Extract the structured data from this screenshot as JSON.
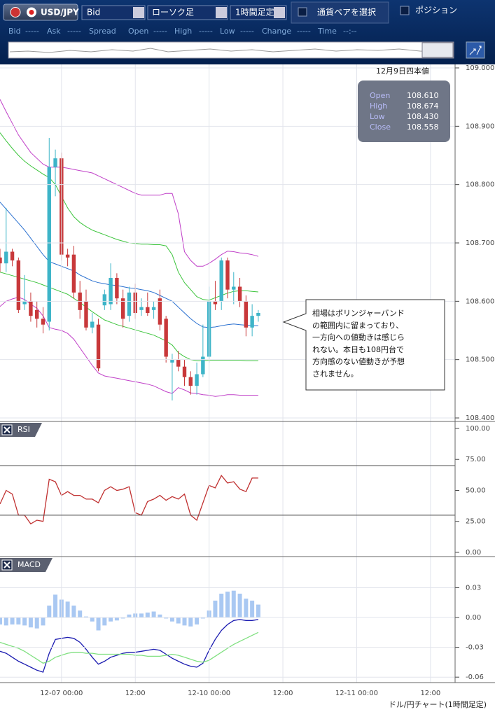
{
  "toolbar": {
    "pair": "USD/JPY",
    "price_side": "Bid",
    "chart_style": "ローソク足",
    "interval": "1時間足定",
    "select_pair": "通貨ペアを選択",
    "position": "ポジション"
  },
  "quote_bar": [
    "Bid",
    "-----",
    "Ask",
    "-----",
    "Spread",
    "Open",
    "-----",
    "High",
    "-----",
    "Low",
    "-----",
    "Change",
    "-----",
    "Time",
    "--:--"
  ],
  "info_box": {
    "title": "12月9日四本値",
    "rows": [
      {
        "label": "Open",
        "value": "108.610"
      },
      {
        "label": "High",
        "value": "108.674"
      },
      {
        "label": "Low",
        "value": "108.430"
      },
      {
        "label": "Close",
        "value": "108.558"
      }
    ]
  },
  "annotation": [
    "相場はボリンジャーバンド",
    "の範囲内に留まっており、",
    "一方向への値動きは感じら",
    "れない。本日も108円台で",
    "方向感のない値動きが予想",
    "されません。"
  ],
  "footer": "ドル/円チャート(1時間足定)",
  "chart_data": [
    {
      "type": "candlestick",
      "x": [
        0,
        1,
        2,
        3,
        4,
        5,
        6,
        7,
        8,
        9,
        10,
        11,
        12,
        13,
        14,
        15,
        16,
        17,
        18,
        19,
        20,
        21,
        22,
        23,
        24,
        25,
        26,
        27,
        28,
        29,
        30,
        31,
        32,
        33,
        34,
        35,
        36,
        37,
        38,
        39,
        40,
        41,
        42
      ],
      "xlim": [
        0,
        74
      ],
      "xticks": [
        {
          "value": 10,
          "label": "12-07 00:00"
        },
        {
          "value": 22,
          "label": "12:00"
        },
        {
          "value": 34,
          "label": "12-10 00:00"
        },
        {
          "value": 46,
          "label": "12:00"
        },
        {
          "value": 58,
          "label": "12-11 00:00"
        },
        {
          "value": 70,
          "label": "12:00"
        }
      ],
      "ylim": [
        108.394,
        109.006
      ],
      "yticks": [
        {
          "value": 108.4,
          "label": "108.400"
        },
        {
          "value": 108.5,
          "label": "108.500"
        },
        {
          "value": 108.6,
          "label": "108.600"
        },
        {
          "value": 108.7,
          "label": "108.700"
        },
        {
          "value": 108.8,
          "label": "108.800"
        },
        {
          "value": 108.9,
          "label": "108.900"
        },
        {
          "value": 109,
          "label": "109.000"
        }
      ],
      "grid": true,
      "up_color": "#3db4c8",
      "down_color": "#c8383a",
      "open": [
        108.675,
        108.665,
        108.685,
        108.67,
        108.595,
        108.6,
        108.585,
        108.57,
        108.565,
        108.83,
        108.845,
        108.68,
        108.68,
        108.615,
        108.6,
        108.555,
        108.56,
        108.593,
        108.595,
        108.64,
        108.605,
        108.575,
        108.615,
        108.585,
        108.59,
        108.585,
        108.605,
        108.57,
        108.495,
        108.5,
        108.488,
        108.47,
        108.455,
        108.475,
        108.505,
        108.6,
        108.6,
        108.67,
        108.62,
        108.625,
        108.6,
        108.555,
        108.575
      ],
      "high": [
        108.69,
        108.76,
        108.69,
        108.675,
        108.645,
        108.615,
        108.6,
        108.59,
        108.88,
        108.86,
        108.855,
        108.69,
        108.695,
        108.635,
        108.62,
        108.58,
        108.57,
        108.62,
        108.665,
        108.648,
        108.62,
        108.625,
        108.63,
        108.605,
        108.615,
        108.6,
        108.62,
        108.575,
        108.51,
        108.515,
        108.5,
        108.48,
        108.495,
        108.56,
        108.625,
        108.635,
        108.675,
        108.675,
        108.65,
        108.64,
        108.61,
        108.595,
        108.585
      ],
      "low": [
        108.65,
        108.65,
        108.66,
        108.58,
        108.585,
        108.565,
        108.555,
        108.545,
        108.55,
        108.78,
        108.67,
        108.66,
        108.605,
        108.57,
        108.55,
        108.545,
        108.48,
        108.585,
        108.585,
        108.595,
        108.555,
        108.565,
        108.57,
        108.575,
        108.575,
        108.57,
        108.55,
        108.495,
        108.43,
        108.48,
        108.455,
        108.44,
        108.44,
        108.47,
        108.495,
        108.585,
        108.585,
        108.605,
        108.595,
        108.59,
        108.54,
        108.54,
        108.565
      ],
      "close": [
        108.665,
        108.685,
        108.67,
        108.585,
        108.6,
        108.575,
        108.57,
        108.56,
        108.83,
        108.845,
        108.68,
        108.675,
        108.615,
        108.585,
        108.555,
        108.565,
        108.485,
        108.612,
        108.64,
        108.605,
        108.57,
        108.615,
        108.58,
        108.59,
        108.58,
        108.59,
        108.56,
        108.505,
        108.5,
        108.488,
        108.47,
        108.455,
        108.475,
        108.505,
        108.6,
        108.595,
        108.67,
        108.62,
        108.625,
        108.6,
        108.555,
        108.575,
        108.58
      ],
      "bands": [
        {
          "color": "#c040c8",
          "values": [
            108.946,
            108.925,
            108.905,
            108.885,
            108.87,
            108.855,
            108.845,
            108.835,
            108.83,
            108.83,
            108.83,
            108.828,
            108.826,
            108.824,
            108.822,
            108.82,
            108.815,
            108.81,
            108.805,
            108.8,
            108.795,
            108.79,
            108.785,
            108.782,
            108.782,
            108.782,
            108.782,
            108.785,
            108.785,
            108.75,
            108.685,
            108.67,
            108.66,
            108.66,
            108.665,
            108.672,
            108.68,
            108.686,
            108.685,
            108.683,
            108.682,
            108.68,
            108.677
          ]
        },
        {
          "color": "#3cc43c",
          "values": [
            108.889,
            108.875,
            108.862,
            108.85,
            108.84,
            108.832,
            108.825,
            108.818,
            108.812,
            108.8,
            108.78,
            108.76,
            108.745,
            108.735,
            108.728,
            108.722,
            108.718,
            108.714,
            108.71,
            108.706,
            108.703,
            108.7,
            108.699,
            108.698,
            108.698,
            108.697,
            108.697,
            108.695,
            108.68,
            108.65,
            108.632,
            108.62,
            108.608,
            108.603,
            108.602,
            108.606,
            108.61,
            108.614,
            108.617,
            108.618,
            108.618,
            108.617,
            108.616
          ]
        },
        {
          "color": "#2a70d0",
          "values": [
            108.77,
            108.758,
            108.746,
            108.734,
            108.722,
            108.708,
            108.694,
            108.68,
            108.668,
            108.664,
            108.66,
            108.656,
            108.652,
            108.645,
            108.64,
            108.635,
            108.632,
            108.63,
            108.628,
            108.627,
            108.625,
            108.623,
            108.622,
            108.62,
            108.618,
            108.615,
            108.61,
            108.605,
            108.6,
            108.59,
            108.58,
            108.57,
            108.562,
            108.556,
            108.555,
            108.556,
            108.558,
            108.56,
            108.561,
            108.56,
            108.559,
            108.558,
            108.558
          ]
        },
        {
          "color": "#3cc43c",
          "values": [
            108.65,
            108.647,
            108.644,
            108.641,
            108.638,
            108.635,
            108.632,
            108.628,
            108.624,
            108.62,
            108.616,
            108.612,
            108.605,
            108.598,
            108.59,
            108.582,
            108.575,
            108.568,
            108.564,
            108.56,
            108.557,
            108.554,
            108.551,
            108.548,
            108.545,
            108.542,
            108.537,
            108.532,
            108.525,
            108.512,
            108.505,
            108.5,
            108.498,
            108.498,
            108.499,
            108.499,
            108.499,
            108.499,
            108.499,
            108.499,
            108.498,
            108.498,
            108.498
          ]
        },
        {
          "color": "#c040c8",
          "values": [
            108.591,
            108.6,
            108.604,
            108.607,
            108.603,
            108.595,
            108.588,
            108.575,
            108.555,
            108.552,
            108.55,
            108.545,
            108.535,
            108.52,
            108.505,
            108.49,
            108.477,
            108.472,
            108.47,
            108.468,
            108.466,
            108.464,
            108.462,
            108.46,
            108.458,
            108.455,
            108.45,
            108.445,
            108.442,
            108.452,
            108.448,
            108.443,
            108.442,
            108.44,
            108.439,
            108.437,
            108.438,
            108.44,
            108.44,
            108.439,
            108.439,
            108.439,
            108.439
          ]
        }
      ]
    },
    {
      "type": "line",
      "title": "RSI",
      "ylim": [
        -3.4,
        104.5
      ],
      "yticks": [
        {
          "value": 0,
          "label": "0.00"
        },
        {
          "value": 25,
          "label": "25.00"
        },
        {
          "value": 50,
          "label": "50.00"
        },
        {
          "value": 75,
          "label": "75.00"
        },
        {
          "value": 100,
          "label": "100.00"
        }
      ],
      "hlines": [
        70,
        30
      ],
      "series": [
        {
          "color": "#c03030",
          "values": [
            39,
            50,
            47,
            30,
            30,
            23,
            26,
            25,
            59,
            57,
            46,
            49,
            46,
            46,
            43,
            43,
            40,
            50,
            53,
            50,
            51,
            53,
            32,
            30,
            41,
            43,
            46,
            42,
            45,
            43,
            47,
            30,
            26,
            40,
            54,
            52,
            62,
            56,
            57,
            51,
            49,
            60,
            60
          ]
        }
      ]
    },
    {
      "type": "macd",
      "title": "MACD",
      "ylim": [
        -0.0655,
        0.0599
      ],
      "yticks": [
        {
          "value": -0.06,
          "label": "-0.06"
        },
        {
          "value": -0.03,
          "label": "-0.03"
        },
        {
          "value": 0,
          "label": "0.00"
        },
        {
          "value": 0.03,
          "label": "0.03"
        }
      ],
      "grid": true,
      "histogram": {
        "color": "#a9c8f2",
        "values": [
          -0.007,
          -0.008,
          -0.007,
          -0.007,
          -0.008,
          -0.01,
          -0.011,
          -0.008,
          0.012,
          0.023,
          0.018,
          0.016,
          0.012,
          0.007,
          0.001,
          -0.004,
          -0.013,
          -0.008,
          -0.004,
          -0.003,
          -0.001,
          0.003,
          0.004,
          0.004,
          0.005,
          0.006,
          0.003,
          -0.001,
          -0.004,
          -0.006,
          -0.008,
          -0.009,
          -0.007,
          -0.001,
          0.007,
          0.017,
          0.024,
          0.026,
          0.027,
          0.024,
          0.019,
          0.017,
          0.013
        ]
      },
      "series": [
        {
          "color": "#1a1ab0",
          "values": [
            -0.034,
            -0.036,
            -0.04,
            -0.044,
            -0.047,
            -0.05,
            -0.053,
            -0.055,
            -0.036,
            -0.022,
            -0.021,
            -0.02,
            -0.021,
            -0.025,
            -0.032,
            -0.04,
            -0.047,
            -0.044,
            -0.04,
            -0.038,
            -0.036,
            -0.035,
            -0.035,
            -0.034,
            -0.033,
            -0.032,
            -0.033,
            -0.037,
            -0.041,
            -0.044,
            -0.047,
            -0.049,
            -0.05,
            -0.046,
            -0.033,
            -0.022,
            -0.013,
            -0.007,
            -0.003,
            -0.002,
            -0.003,
            -0.003,
            -0.002
          ]
        },
        {
          "color": "#80e080",
          "values": [
            -0.025,
            -0.027,
            -0.029,
            -0.031,
            -0.034,
            -0.038,
            -0.042,
            -0.046,
            -0.044,
            -0.04,
            -0.038,
            -0.036,
            -0.035,
            -0.035,
            -0.036,
            -0.036,
            -0.037,
            -0.037,
            -0.037,
            -0.037,
            -0.037,
            -0.037,
            -0.038,
            -0.038,
            -0.039,
            -0.039,
            -0.039,
            -0.038,
            -0.037,
            -0.038,
            -0.04,
            -0.042,
            -0.044,
            -0.045,
            -0.043,
            -0.039,
            -0.035,
            -0.031,
            -0.027,
            -0.024,
            -0.021,
            -0.018,
            -0.015
          ]
        }
      ]
    }
  ]
}
